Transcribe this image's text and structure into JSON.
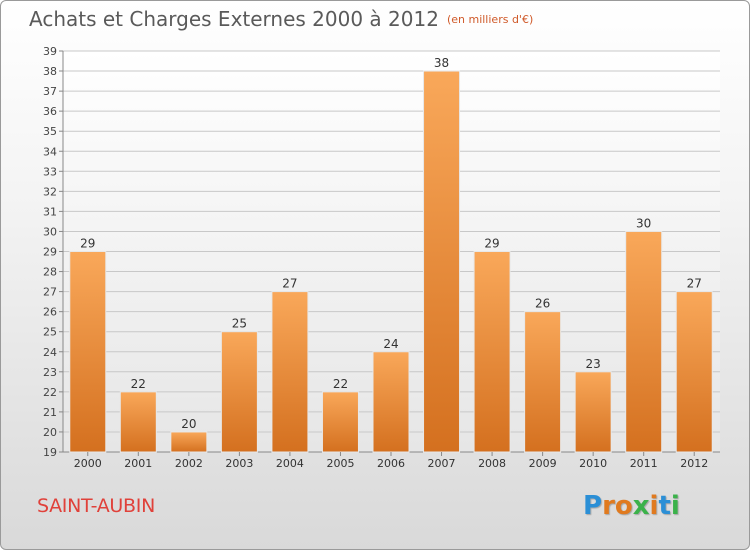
{
  "header": {
    "title": "Achats et Charges Externes 2000 à 2012",
    "subtitle": "(en milliers d'€)"
  },
  "footer": {
    "town": "SAINT-AUBIN",
    "logo_letters": [
      "P",
      "r",
      "o",
      "x",
      "i",
      "t",
      "i"
    ],
    "logo_colors": [
      "#2b8fd6",
      "#e07a1f",
      "#e07a1f",
      "#3bb24a",
      "#e07a1f",
      "#2b8fd6",
      "#3bb24a"
    ]
  },
  "chart_data": {
    "type": "bar",
    "title": "Achats et Charges Externes 2000 à 2012",
    "subtitle": "(en milliers d'€)",
    "categories": [
      "2000",
      "2001",
      "2002",
      "2003",
      "2004",
      "2005",
      "2006",
      "2007",
      "2008",
      "2009",
      "2010",
      "2011",
      "2012"
    ],
    "values": [
      29,
      22,
      20,
      25,
      27,
      22,
      24,
      38,
      29,
      26,
      23,
      30,
      27
    ],
    "xlabel": "",
    "ylabel": "",
    "ylim": [
      19,
      39
    ],
    "yticks": [
      19,
      20,
      21,
      22,
      23,
      24,
      25,
      26,
      27,
      28,
      29,
      30,
      31,
      32,
      33,
      34,
      35,
      36,
      37,
      38,
      39
    ],
    "grid": true,
    "bar_color_top": "#f9a85a",
    "bar_color_bottom": "#d4701f"
  }
}
